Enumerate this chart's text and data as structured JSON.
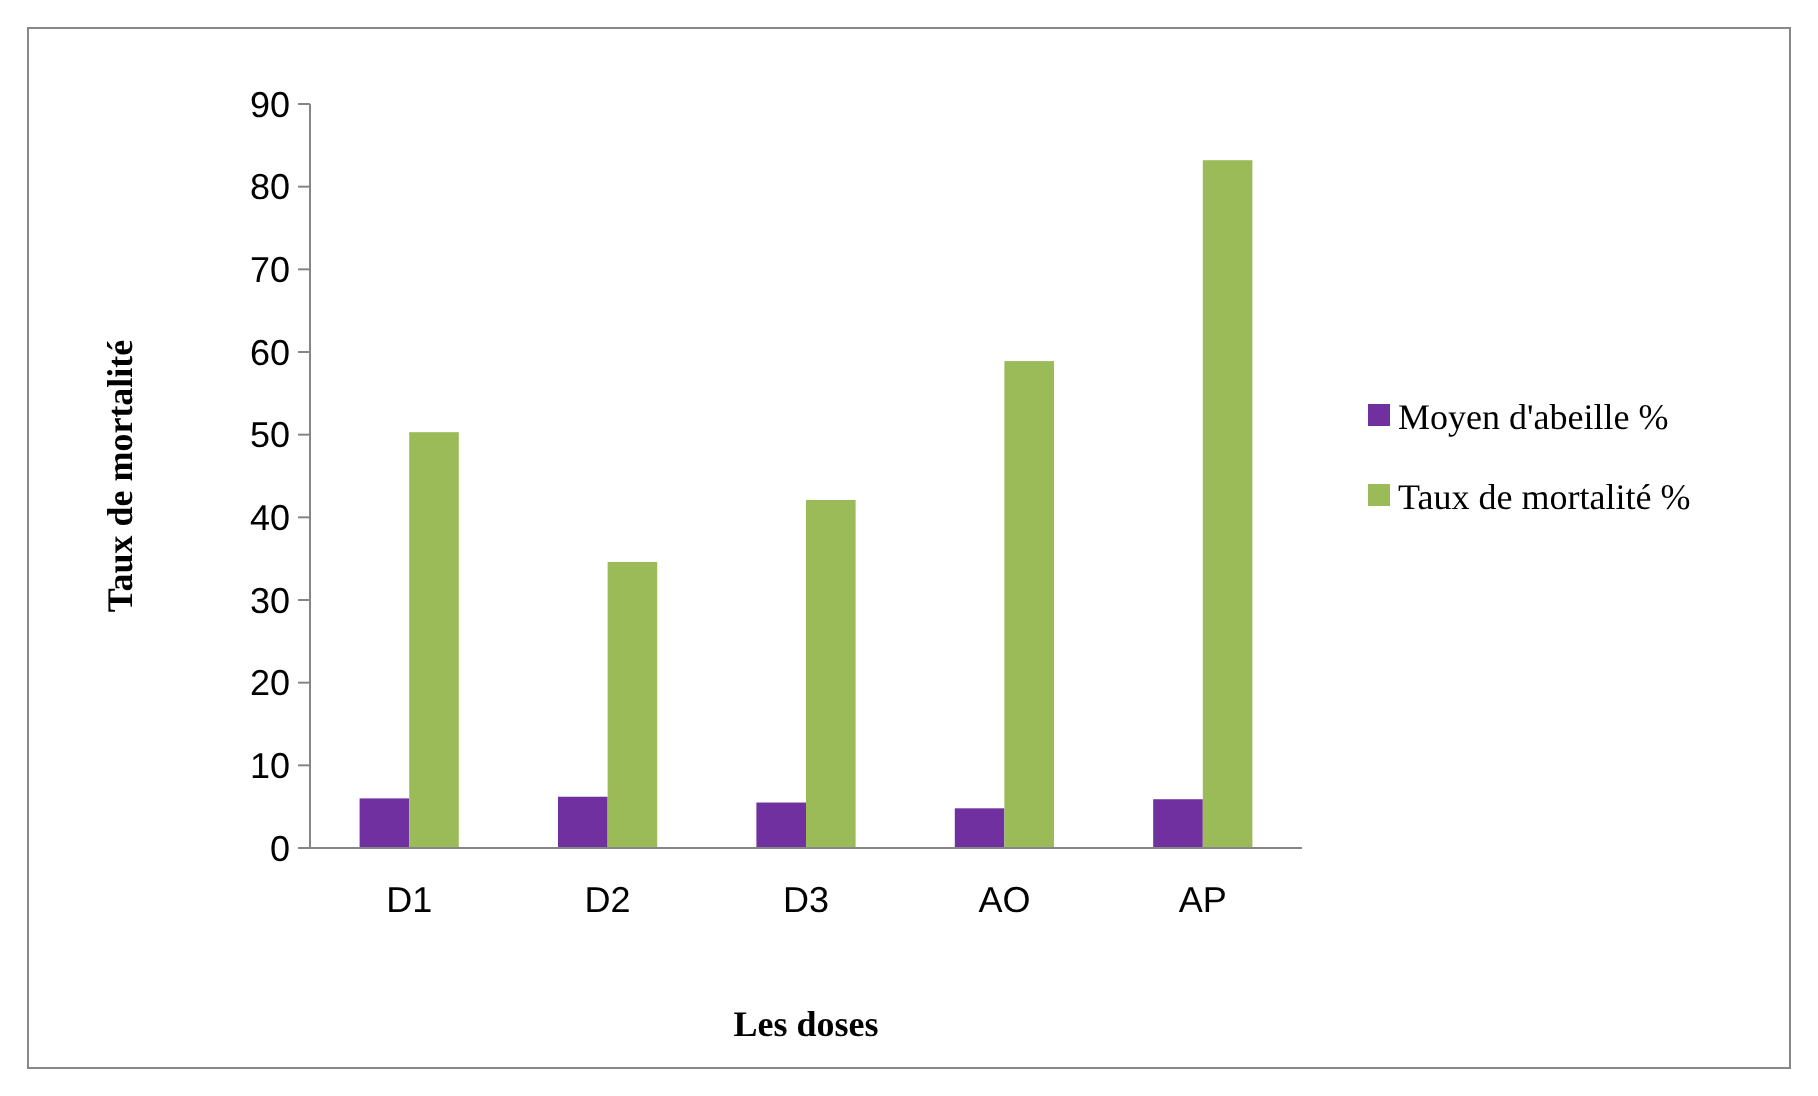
{
  "chart_data": {
    "type": "bar",
    "xlabel": "Les doses",
    "ylabel": "Taux de mortalité",
    "categories": [
      "D1",
      "D2",
      "D3",
      "AO",
      "AP"
    ],
    "series": [
      {
        "name": "Moyen d'abeille %",
        "color": "#7030a0",
        "values": [
          6.0,
          6.2,
          5.5,
          4.8,
          5.9
        ]
      },
      {
        "name": "Taux de mortalité %",
        "color": "#9bbb59",
        "values": [
          50.3,
          34.6,
          42.1,
          58.9,
          83.2
        ]
      }
    ],
    "ylim": [
      0,
      90
    ],
    "yticks": [
      0,
      10,
      20,
      30,
      40,
      50,
      60,
      70,
      80,
      90
    ],
    "grid": false,
    "legend": "right"
  }
}
